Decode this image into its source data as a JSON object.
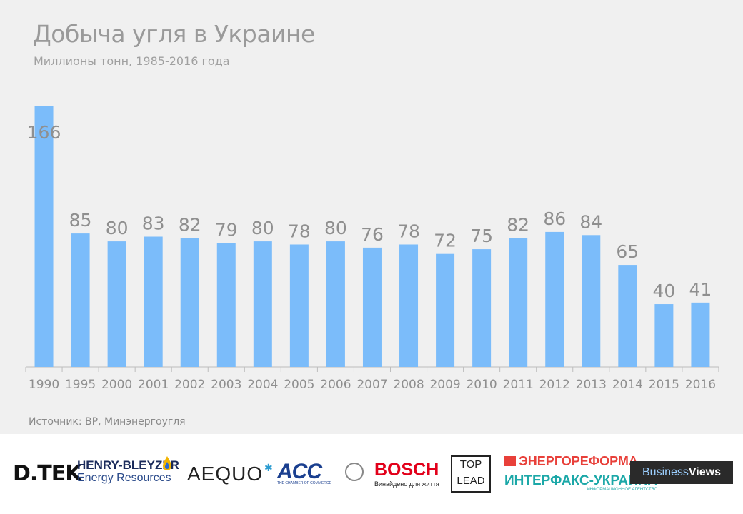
{
  "chart_data": {
    "type": "bar",
    "title": "Добыча угля в Украине",
    "subtitle": "Миллионы тонн, 1985-2016 года",
    "categories": [
      "1990",
      "1995",
      "2000",
      "2001",
      "2002",
      "2003",
      "2004",
      "2005",
      "2006",
      "2007",
      "2008",
      "2009",
      "2010",
      "2011",
      "2012",
      "2013",
      "2014",
      "2015",
      "2016"
    ],
    "values": [
      166,
      85,
      80,
      83,
      82,
      79,
      80,
      78,
      80,
      76,
      78,
      72,
      75,
      82,
      86,
      84,
      65,
      40,
      41
    ],
    "ylim": [
      0,
      166
    ],
    "bar_color": "#7bbcfa",
    "grid": false,
    "source": "Источник: BP, Минэнергоугля"
  },
  "logos": {
    "dtek": "D.TEK",
    "henry_bleyzer_1": "HENRY-BLEYZER",
    "henry_bleyzer_2": "Energy Resources",
    "aequo": "AEQUO",
    "acc": "ACC",
    "acc_sub": "THE CHAMBER OF COMMERCE",
    "bosch": "BOSCH",
    "bosch_sub": "Винайдено для життя",
    "toplead_1": "TOP",
    "toplead_2": "LEAD",
    "energoreforma": "ЭНЕРГОРЕФОРМА",
    "interfax": "ИНТЕРФАКС-УКРАИНА",
    "interfax_sub": "ИНФОРМАЦИОННОЕ АГЕНТСТВО",
    "bv_a": "Business",
    "bv_b": "Views"
  }
}
